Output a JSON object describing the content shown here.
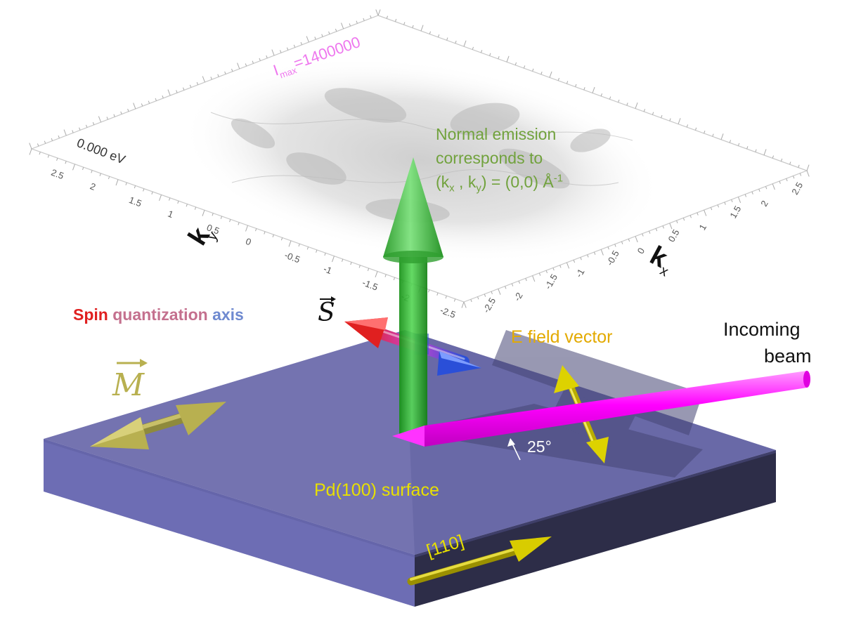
{
  "plot": {
    "intensity_label": "I",
    "intensity_sub": "max",
    "intensity_value": "=1400000",
    "energy_label": "0.000 eV",
    "kx_label": "kx",
    "ky_label": "ky",
    "ticks": [
      "2.5",
      "2",
      "1.5",
      "1",
      "0.5",
      "0",
      "-0.5",
      "-1",
      "-1.5",
      "-2",
      "-2.5"
    ]
  },
  "normal_emission": {
    "line1": "Normal emission",
    "line2": "corresponds to",
    "line3_a": "(k",
    "line3_sub_x": "x",
    "line3_b": " , k",
    "line3_sub_y": "y",
    "line3_c": ") = (0,0) Å",
    "line3_sup": "-1"
  },
  "spin_axis": {
    "word1": "Spin",
    "word2": "quantization",
    "word3": "axis",
    "symbol": "S"
  },
  "magnetization_symbol": "M",
  "e_field_label": "E field vector",
  "beam_label_1": "Incoming",
  "beam_label_2": "beam",
  "angle_label": "25°",
  "surface_label": "Pd(100) surface",
  "direction_label": "[110]",
  "colors": {
    "slab_top": "#7473b0",
    "slab_left": "#6d6db4",
    "slab_right": "#2d2d48",
    "beam": "#ff00ff",
    "normal_arrow": "#22bb22",
    "spin_red": "#e02020",
    "spin_blue": "#2a4fd8",
    "yellow_arrow": "#ddd200",
    "olive_arrow": "#b8b050",
    "label_yellow": "#e8e000",
    "label_orange": "#e3aa00",
    "label_green": "#71a23d",
    "label_pink": "#ee77ee"
  }
}
